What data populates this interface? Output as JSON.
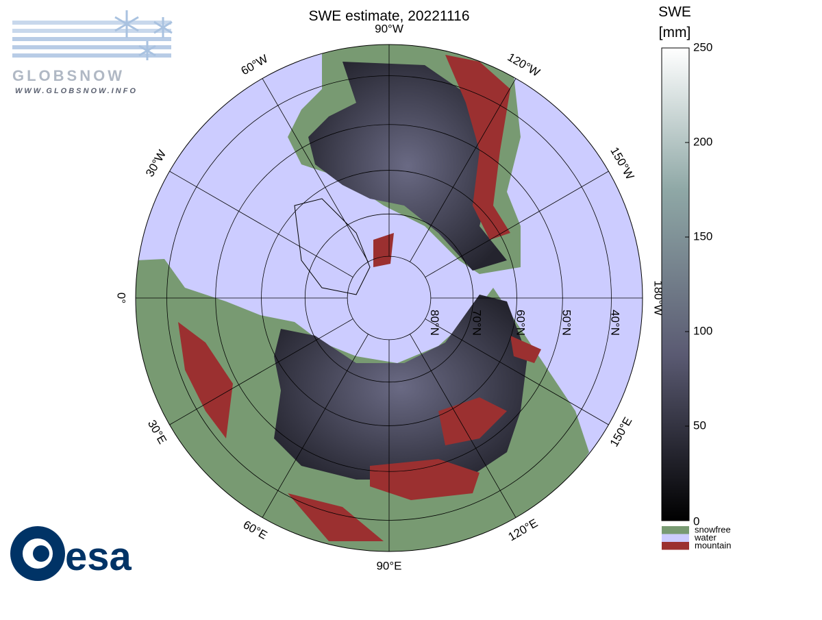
{
  "header": {
    "title": "SWE estimate, 20221116"
  },
  "logo": {
    "name": "GLOBSNOW",
    "url": "WWW.GLOBSNOW.INFO",
    "agency": "esa"
  },
  "map": {
    "meridians": [
      {
        "lon": 0,
        "label": "0°"
      },
      {
        "lon": -30,
        "label": "30°W"
      },
      {
        "lon": -60,
        "label": "60°W"
      },
      {
        "lon": -90,
        "label": "90°W"
      },
      {
        "lon": -120,
        "label": "120°W"
      },
      {
        "lon": -150,
        "label": "150°W"
      },
      {
        "lon": 180,
        "label": "180°W"
      },
      {
        "lon": 150,
        "label": "150°E"
      },
      {
        "lon": 120,
        "label": "120°E"
      },
      {
        "lon": 90,
        "label": "90°E"
      },
      {
        "lon": 60,
        "label": "60°E"
      },
      {
        "lon": 30,
        "label": "30°E"
      }
    ],
    "parallels": [
      {
        "lat": 80,
        "label": "80°N"
      },
      {
        "lat": 70,
        "label": "70°N"
      },
      {
        "lat": 60,
        "label": "60°N"
      },
      {
        "lat": 50,
        "label": "50°N"
      },
      {
        "lat": 40,
        "label": "40°N"
      }
    ],
    "lat_limit": 34
  },
  "colorbar": {
    "title": "SWE",
    "unit": "[mm]",
    "range": [
      0,
      250
    ],
    "ticks": [
      0,
      50,
      100,
      150,
      200,
      250
    ]
  },
  "legend": [
    {
      "label": "snowfree",
      "color": "#789a72"
    },
    {
      "label": "water",
      "color": "#ccccff"
    },
    {
      "label": "mountain",
      "color": "#9b3030"
    }
  ]
}
